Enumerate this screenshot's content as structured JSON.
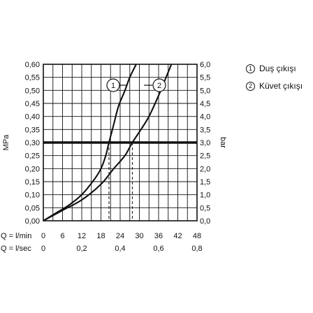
{
  "chart_data": {
    "type": "line",
    "left_axis": {
      "label": "MPa",
      "ticks": [
        "0,00",
        "0,05",
        "0,10",
        "0,15",
        "0,20",
        "0,25",
        "0,30",
        "0,35",
        "0,40",
        "0,45",
        "0,50",
        "0,55",
        "0,60"
      ],
      "range": [
        0,
        0.6
      ]
    },
    "right_axis": {
      "label": "bar",
      "ticks": [
        "0,0",
        "0,5",
        "1,0",
        "1,5",
        "2,0",
        "2,5",
        "3,0",
        "3,5",
        "4,0",
        "4,5",
        "5,0",
        "5,5",
        "6,0"
      ],
      "range": [
        0,
        6
      ]
    },
    "x_axis_flow_min": {
      "label": "Q = l/min",
      "ticks": [
        "0",
        "6",
        "12",
        "18",
        "24",
        "30",
        "36",
        "42",
        "48"
      ],
      "range": [
        0,
        48
      ]
    },
    "x_axis_flow_sec": {
      "label": "Q = l/sec",
      "ticks": [
        {
          "label": "0",
          "lmin": 0
        },
        {
          "label": "0,2",
          "lmin": 12
        },
        {
          "label": "0,4",
          "lmin": 24
        },
        {
          "label": "0,6",
          "lmin": 36
        },
        {
          "label": "0,8",
          "lmin": 48
        }
      ]
    },
    "reference_line": {
      "y": 0.3
    },
    "markers": [
      {
        "series": 1,
        "x": 20.5
      },
      {
        "series": 2,
        "x": 27.8
      }
    ],
    "series": [
      {
        "id": 1,
        "marker_label": "1",
        "name": "Duş çıkışı",
        "points": [
          [
            0,
            0
          ],
          [
            4,
            0.03
          ],
          [
            8,
            0.06
          ],
          [
            12,
            0.1
          ],
          [
            16,
            0.16
          ],
          [
            18,
            0.2
          ],
          [
            19.5,
            0.25
          ],
          [
            20.5,
            0.3
          ],
          [
            22,
            0.37
          ],
          [
            23.5,
            0.44
          ],
          [
            25.5,
            0.5
          ],
          [
            27,
            0.55
          ],
          [
            29,
            0.6
          ]
        ]
      },
      {
        "id": 2,
        "marker_label": "2",
        "name": "Küvet çıkışı",
        "points": [
          [
            0,
            0
          ],
          [
            6,
            0.04
          ],
          [
            12,
            0.08
          ],
          [
            18,
            0.14
          ],
          [
            22,
            0.2
          ],
          [
            25.5,
            0.25
          ],
          [
            27.8,
            0.3
          ],
          [
            30.5,
            0.35
          ],
          [
            33,
            0.4
          ],
          [
            36,
            0.48
          ],
          [
            38,
            0.54
          ],
          [
            40,
            0.6
          ]
        ]
      }
    ]
  }
}
